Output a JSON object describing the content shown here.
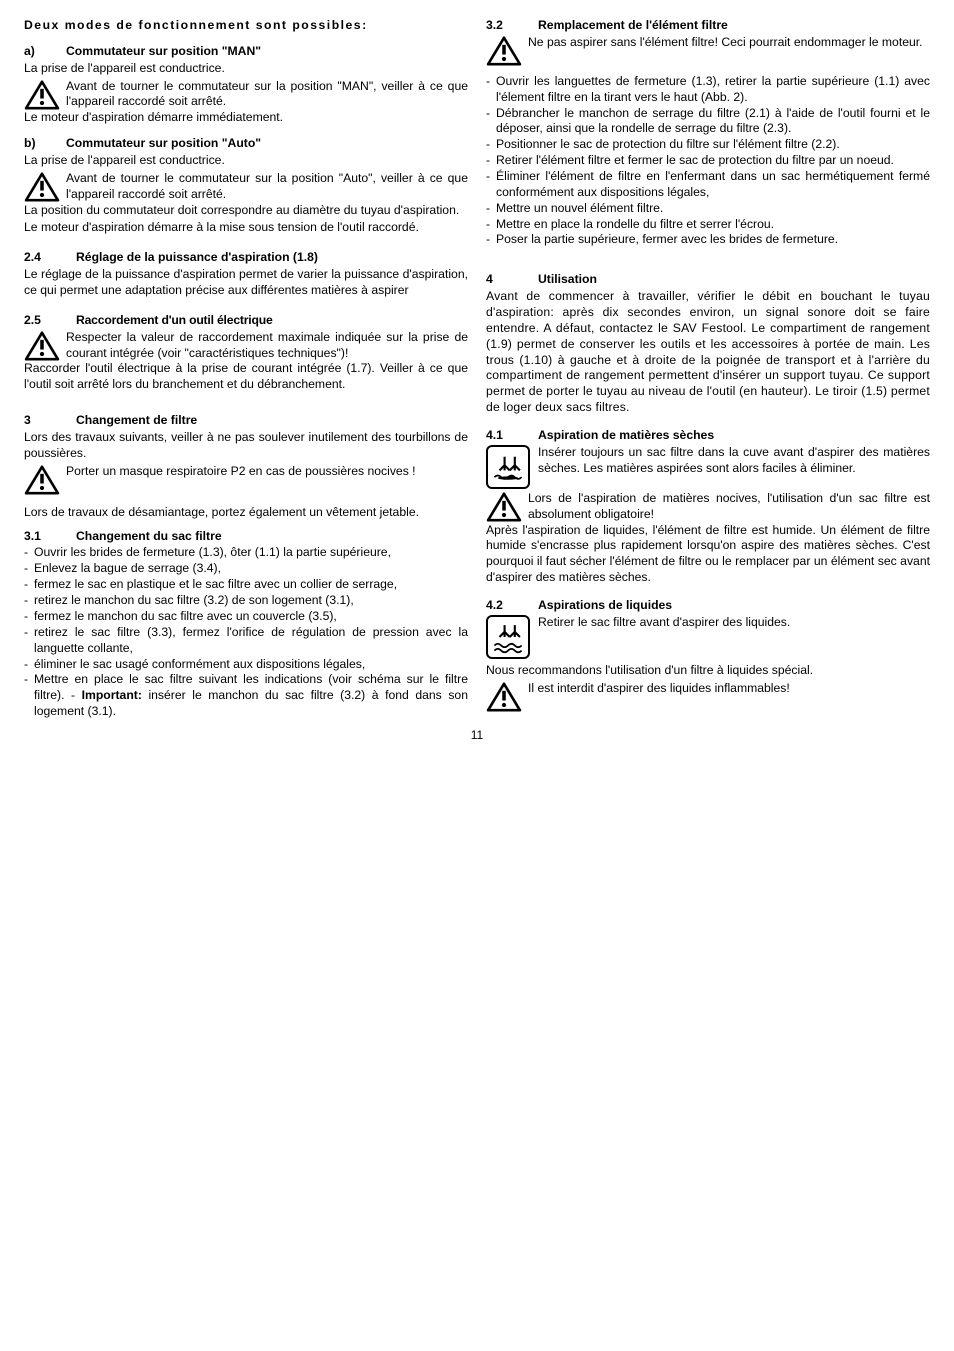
{
  "left": {
    "intro_bold": "Deux modes de fonctionnement sont possibles:",
    "a_head_num": "a)",
    "a_head_txt": "Commutateur sur position \"MAN\"",
    "a_line": "La prise de l'appareil est conductrice.",
    "a_warn": "Avant de tourner le commutateur sur la position \"MAN\", veiller à ce que l'appareil raccordé soit arrêté.",
    "a_after": "Le moteur d'aspiration démarre immédiate­ment.",
    "b_head_num": "b)",
    "b_head_txt": "Commutateur sur position \"Auto\"",
    "b_line": "La prise de l'appareil est conductrice.",
    "b_warn": "Avant de tourner le commutateur sur la position \"Auto\", veiller à ce que l'appareil raccordé soit arrêté.",
    "b_after1": "La position du commutateur doit correspondre au diamètre du tuyau d'aspiration.",
    "b_after2": "Le moteur d'aspiration démarre à la mise sous tension de l'outil raccordé.",
    "s24_num": "2.4",
    "s24_txt": "Réglage de la puissance d'aspira­tion (1.8)",
    "s24_body": "Le réglage de la puissance d'aspiration permet de varier la puissance d'aspiration, ce qui permet une adaptation précise aux différentes matières à aspirer",
    "s25_num": "2.5",
    "s25_txt": "Raccordement d'un outil électrique",
    "s25_warn": "Respecter la valeur de raccordement maximale indiquée sur la prise de courant intégrée (voir \"caractéristiques techniques\")!",
    "s25_body": "Raccorder l'outil électrique à la prise de courant intégrée (1.7). Veiller à ce que l'outil soit arrêté lors du branchement et du débranchement.",
    "s3_num": "3",
    "s3_txt": "Changement de filtre",
    "s3_body1": "Lors des travaux suivants, veiller à ne pas soul­ever inutilement des tourbillons de poussières.",
    "s3_warn": "Porter un masque respiratoire P2 en cas de poussières nocives !",
    "s3_body2": "Lors de travaux de désamiantage, portez également un vêtement jetable.",
    "s31_num": "3.1",
    "s31_txt": "Changement du sac filtre",
    "s31_items": [
      "Ouvrir les brides de fermeture (1.3), ôter (1.1) la partie supérieure,",
      "Enlevez la bague de serrage (3.4),",
      "fermez le sac en plastique et le sac filtre avec un collier de serrage,",
      "retirez le manchon du sac filtre (3.2) de son logement (3.1),",
      "fermez le manchon du sac filtre avec un couvercle (3.5),",
      "retirez le sac filtre (3.3), fermez l'orifice de régulation de pression avec la languette collante,",
      "éliminer le sac usagé conformément aux dispositions légales,"
    ],
    "s31_last_lead": "Mettre en place le sac filtre suivant les indications (voir schéma sur le filtre filtre). -",
    "s31_last_bold": "Important:",
    "s31_last_tail": " insérer le manchon du sac filtre (3.2) à fond dans son logement (3.1)."
  },
  "right": {
    "s32_num": "3.2",
    "s32_txt": "Remplacement de l'élément filtre",
    "s32_warn": "Ne pas aspirer sans l'élément filtre! Ceci pourrait endommager le moteur.",
    "s32_items": [
      "Ouvrir les languettes de fermeture (1.3), retirer la partie supérieure (1.1) avec l'élement filtre en la tirant vers le haut (Abb. 2).",
      "Débrancher le manchon de serrage du filtre (2.1) à l'aide de l'outil fourni et le déposer, ainsi que la rondelle de serrage du filtre (2.3).",
      "Positionner le sac de protection du filtre sur l'élément filtre (2.2).",
      "Retirer l'élément filtre et fermer le sac de protection du filtre par un noeud.",
      "Éliminer l'élément de filtre en l'enfermant dans un sac hermétiquement fermé conformément aux dispositions légales,",
      "Mettre un nouvel élément filtre.",
      "Mettre en place la rondelle du filtre et serrer l'écrou.",
      "Poser la partie supérieure, fermer avec les brides de fermeture."
    ],
    "s4_num": "4",
    "s4_txt": "Utilisation",
    "s4_body": "Avant de commencer à travailler, vérifier le débit en bouchant le tuyau d'aspiration: après dix secondes environ, un signal sonore doit se faire entendre. A défaut, contactez le SAV Festool. Le compartiment de rangement (1.9) permet de conserver les outils et les accessoires à portée de main. Les trous (1.10) à gauche et à droite de la poignée de transport et à l'arrière du compartiment de rangement permettent d'insérer un support tuyau. Ce support permet de porter le tuyau au niveau de l'outil (en hauteur). Le tiroir (1.5) permet de loger deux sacs filtres.",
    "s41_num": "4.1",
    "s41_txt": "Aspiration de matières sèches",
    "s41_box": "Insérer toujours un sac filtre dans la cuve avant d'aspirer des matières sèches. Les matières aspirées sont alors faciles à éliminer.",
    "s41_warn": "Lors de l'aspiration de matières nocives, l'utilisation d'un sac filtre est absolument obligatoire!",
    "s41_body": "Après l'aspiration de liquides, l'élément de filtre est humide. Un élément de filtre humide s'encrasse plus rapidement lorsqu'on aspire des matières sèches. C'est pourquoi il faut sécher l'élément de filtre ou le remplacer par un élé­ment sec avant d'aspirer des matières sèches.",
    "s42_num": "4.2",
    "s42_txt": "Aspirations de liquides",
    "s42_box": "Retirer le sac filtre avant d'aspirer des liquides.",
    "s42_body": "Nous recommandons l'utilisation d'un filtre à liquides spécial.",
    "s42_warn": "Il est interdit d'aspirer des liquides inflammables!"
  },
  "page": "11"
}
